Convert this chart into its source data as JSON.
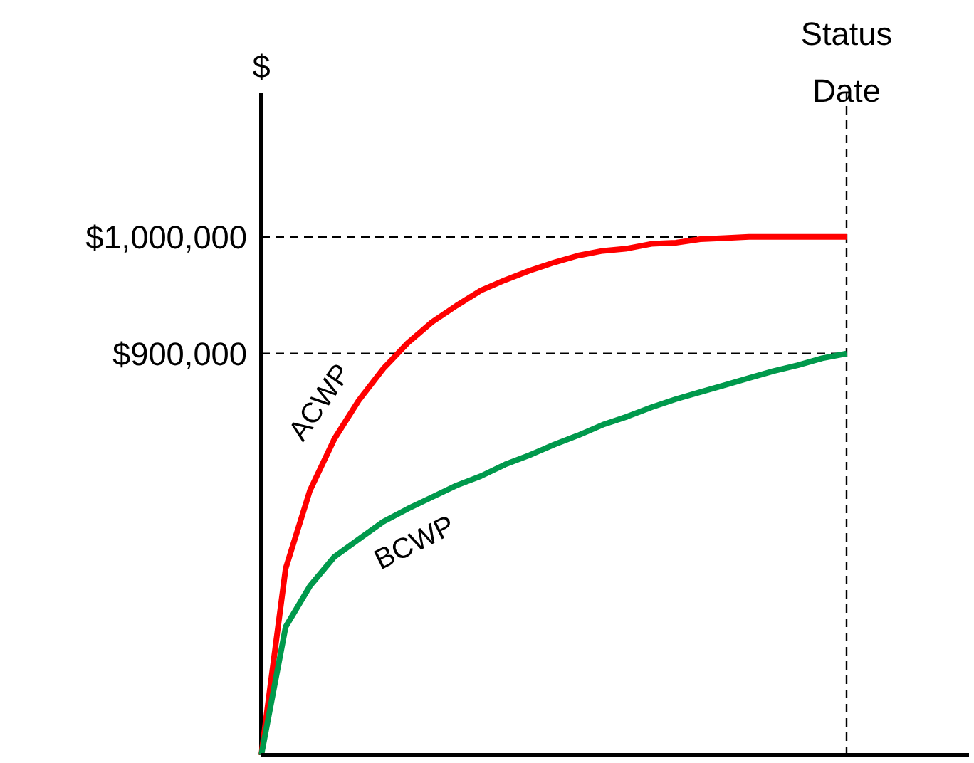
{
  "chart_data": {
    "type": "line",
    "ylabel": "$",
    "tick_labels": "y",
    "grid": false,
    "legend": false,
    "line_style": "solid",
    "marker": "none",
    "categories": [
      null,
      null,
      null,
      null,
      null,
      null,
      null,
      null,
      null,
      null,
      null,
      null,
      null,
      null,
      null,
      null,
      null,
      null,
      null,
      null,
      null,
      null,
      null,
      null,
      null
    ],
    "ylim": [
      556000,
      1123000
    ],
    "yticks": [
      {
        "value": 900000,
        "label": "$900,000"
      },
      {
        "value": 1000000,
        "label": "$1,000,000"
      }
    ],
    "series": [
      {
        "name": "ACWP",
        "color": "#ff0000",
        "values": [
          556000,
          716000,
          783000,
          827000,
          860000,
          887000,
          909000,
          927000,
          941000,
          954000,
          963000,
          971000,
          978000,
          984000,
          988000,
          990000,
          994000,
          995000,
          998000,
          999000,
          1000000,
          1000000,
          1000000,
          1000000,
          1000000
        ]
      },
      {
        "name": "BCWP",
        "color": "#00994c",
        "values": [
          556000,
          666000,
          701000,
          726000,
          741000,
          756000,
          767000,
          777000,
          787000,
          795000,
          805000,
          813000,
          822000,
          830000,
          839000,
          846000,
          854000,
          861000,
          867000,
          873000,
          879000,
          885000,
          890000,
          896000,
          900000
        ]
      }
    ],
    "ref_lines": [
      {
        "axis": "x",
        "label": "Status Date",
        "line_style": "dashed",
        "color": "#000000"
      },
      {
        "axis": "y",
        "value": 1000000,
        "line_style": "dashed",
        "color": "#000000"
      },
      {
        "axis": "y",
        "value": 900000,
        "line_style": "dashed",
        "color": "#000000"
      }
    ]
  }
}
